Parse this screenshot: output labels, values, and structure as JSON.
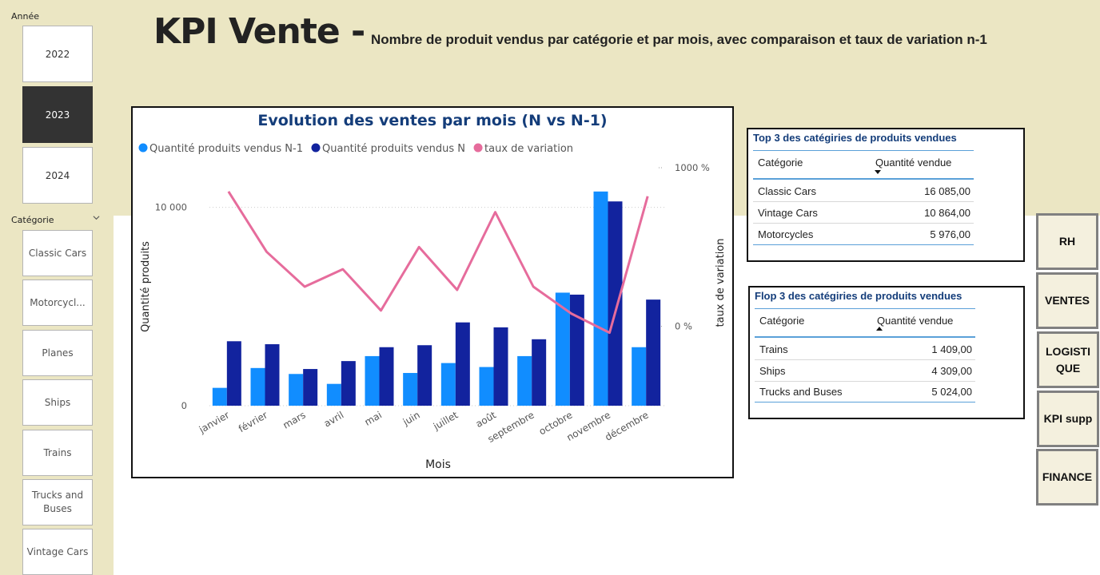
{
  "slicers": {
    "year": {
      "label": "Année",
      "items": [
        {
          "label": "2022",
          "selected": false
        },
        {
          "label": "2023",
          "selected": true
        },
        {
          "label": "2024",
          "selected": false
        }
      ]
    },
    "category": {
      "label": "Catégorie",
      "items": [
        "Classic Cars",
        "Motorcycl...",
        "Planes",
        "Ships",
        "Trains",
        "Trucks and Buses",
        "Vintage Cars"
      ]
    }
  },
  "header": {
    "title": "KPI Vente -",
    "subtitle": "Nombre de produit vendus par catégorie et par mois, avec comparaison et taux de variation n-1"
  },
  "chart_data": {
    "type": "bar",
    "title": "Evolution des ventes par mois (N vs N-1)",
    "xlabel": "Mois",
    "ylabel": "Quantité produits",
    "y2label": "taux de variation",
    "categories": [
      "janvier",
      "février",
      "mars",
      "avril",
      "mai",
      "juin",
      "juillet",
      "août",
      "septembre",
      "octobre",
      "novembre",
      "décembre"
    ],
    "series": [
      {
        "name": "Quantité produits vendus N-1",
        "color": "#118dff",
        "values": [
          900,
          1900,
          1600,
          1100,
          2500,
          1650,
          2150,
          1950,
          2500,
          5700,
          10800,
          2950
        ]
      },
      {
        "name": "Quantité produits vendus N",
        "color": "#12239e",
        "values": [
          3250,
          3100,
          1850,
          2250,
          2950,
          3050,
          4200,
          3950,
          3350,
          5600,
          10300,
          5350
        ]
      },
      {
        "name": "taux de variation",
        "color": "#e66c9c",
        "type": "line",
        "axis": "right",
        "values": [
          850,
          470,
          250,
          360,
          100,
          500,
          230,
          720,
          250,
          80,
          -40,
          820
        ]
      }
    ],
    "ylim": [
      0,
      12000
    ],
    "y_ticks": [
      {
        "value": 0,
        "label": "0"
      },
      {
        "value": 10000,
        "label": "10 000"
      }
    ],
    "y2lim": [
      -500,
      1000
    ],
    "y2_ticks": [
      {
        "value": 0,
        "label": "0 %"
      },
      {
        "value": 1000,
        "label": "1000 %"
      }
    ],
    "legend": "top-left"
  },
  "top3": {
    "title": "Top 3 des catégiries de produits vendues",
    "headers": {
      "category": "Catégorie",
      "quantity": "Quantité vendue"
    },
    "rows": [
      {
        "category": "Classic Cars",
        "quantity": "16 085,00"
      },
      {
        "category": "Vintage Cars",
        "quantity": "10 864,00"
      },
      {
        "category": "Motorcycles",
        "quantity": "5 976,00"
      }
    ]
  },
  "flop3": {
    "title": "Flop 3 des catégiries de produits vendues",
    "headers": {
      "category": "Catégorie",
      "quantity": "Quantité vendue"
    },
    "rows": [
      {
        "category": "Trains",
        "quantity": "1 409,00"
      },
      {
        "category": "Ships",
        "quantity": "4 309,00"
      },
      {
        "category": "Trucks and Buses",
        "quantity": "5 024,00"
      }
    ]
  },
  "nav": {
    "items": [
      "RH",
      "VENTES",
      "LOGISTI QUE",
      "KPI supp",
      "FINANCE"
    ]
  }
}
